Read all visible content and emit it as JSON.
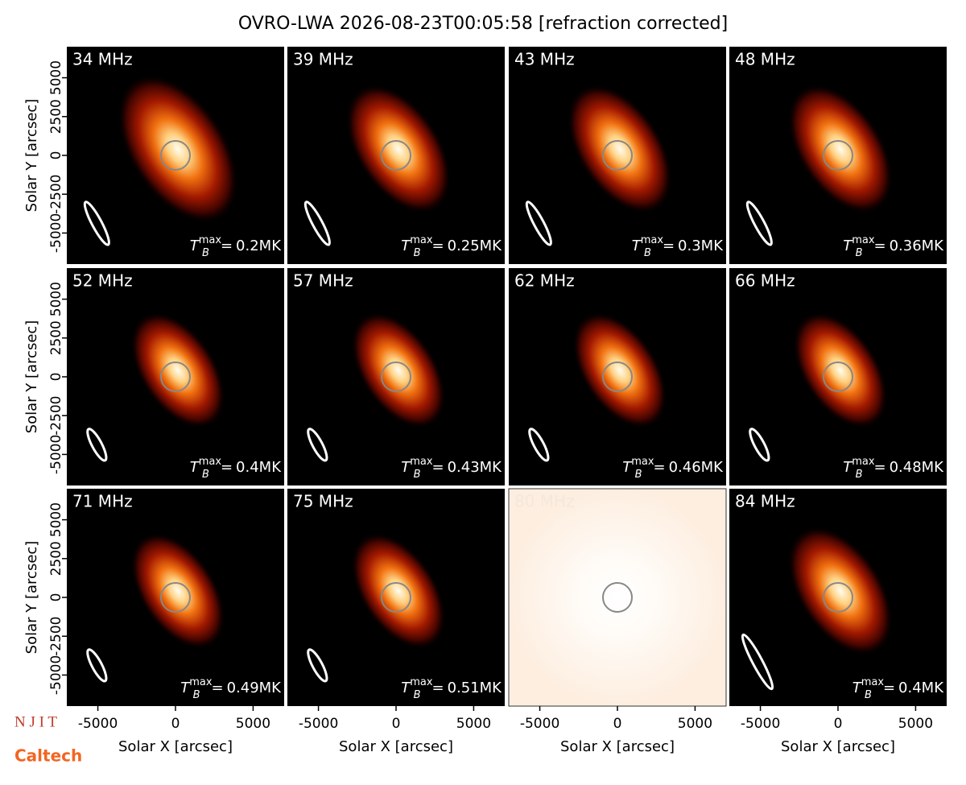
{
  "title": "OVRO-LWA 2026-08-23T00:05:58 [refraction corrected]",
  "tmax_symbol": {
    "base": "T",
    "sub": "B",
    "sup": "max",
    "eq": "="
  },
  "logos": [
    "N J I T",
    "Caltech"
  ],
  "chart_data": [
    {
      "type": "image",
      "title": "34 MHz",
      "tmax": {
        "value": 0.2,
        "label": "0.2MK"
      },
      "xlim": [
        -7000,
        7000
      ],
      "ylim": [
        -7000,
        7000
      ],
      "yticks": [
        -5000,
        -2500,
        0,
        2500,
        5000
      ],
      "ylabel": "Solar Y [arcsec]"
    },
    {
      "type": "image",
      "title": "39 MHz",
      "tmax": {
        "value": 0.25,
        "label": "0.25MK"
      },
      "xlim": [
        -7000,
        7000
      ],
      "ylim": [
        -7000,
        7000
      ]
    },
    {
      "type": "image",
      "title": "43 MHz",
      "tmax": {
        "value": 0.3,
        "label": "0.3MK"
      },
      "xlim": [
        -7000,
        7000
      ],
      "ylim": [
        -7000,
        7000
      ]
    },
    {
      "type": "image",
      "title": "48 MHz",
      "tmax": {
        "value": 0.36,
        "label": "0.36MK"
      },
      "xlim": [
        -7000,
        7000
      ],
      "ylim": [
        -7000,
        7000
      ]
    },
    {
      "type": "image",
      "title": "52 MHz",
      "tmax": {
        "value": 0.4,
        "label": "0.4MK"
      },
      "xlim": [
        -7000,
        7000
      ],
      "ylim": [
        -7000,
        7000
      ],
      "yticks": [
        -5000,
        -2500,
        0,
        2500,
        5000
      ],
      "ylabel": "Solar Y [arcsec]"
    },
    {
      "type": "image",
      "title": "57 MHz",
      "tmax": {
        "value": 0.43,
        "label": "0.43MK"
      },
      "xlim": [
        -7000,
        7000
      ],
      "ylim": [
        -7000,
        7000
      ]
    },
    {
      "type": "image",
      "title": "62 MHz",
      "tmax": {
        "value": 0.46,
        "label": "0.46MK"
      },
      "xlim": [
        -7000,
        7000
      ],
      "ylim": [
        -7000,
        7000
      ]
    },
    {
      "type": "image",
      "title": "66 MHz",
      "tmax": {
        "value": 0.48,
        "label": "0.48MK"
      },
      "xlim": [
        -7000,
        7000
      ],
      "ylim": [
        -7000,
        7000
      ]
    },
    {
      "type": "image",
      "title": "71 MHz",
      "tmax": {
        "value": 0.49,
        "label": "0.49MK"
      },
      "xlim": [
        -7000,
        7000
      ],
      "ylim": [
        -7000,
        7000
      ],
      "yticks": [
        -5000,
        -2500,
        0,
        2500,
        5000
      ],
      "ylabel": "Solar Y [arcsec]",
      "xticks": [
        -5000,
        0,
        5000
      ],
      "xlabel": "Solar X [arcsec]"
    },
    {
      "type": "image",
      "title": "75 MHz",
      "tmax": {
        "value": 0.51,
        "label": "0.51MK"
      },
      "xlim": [
        -7000,
        7000
      ],
      "ylim": [
        -7000,
        7000
      ],
      "xticks": [
        -5000,
        0,
        5000
      ],
      "xlabel": "Solar X [arcsec]"
    },
    {
      "type": "image-saturated",
      "title": "80 MHz",
      "xlim": [
        -7000,
        7000
      ],
      "ylim": [
        -7000,
        7000
      ],
      "xticks": [
        -5000,
        0,
        5000
      ],
      "xlabel": "Solar X [arcsec]"
    },
    {
      "type": "image",
      "title": "84 MHz",
      "tmax": {
        "value": 0.4,
        "label": "0.4MK"
      },
      "xlim": [
        -7000,
        7000
      ],
      "ylim": [
        -7000,
        7000
      ],
      "xticks": [
        -5000,
        0,
        5000
      ],
      "xlabel": "Solar X [arcsec]"
    }
  ]
}
